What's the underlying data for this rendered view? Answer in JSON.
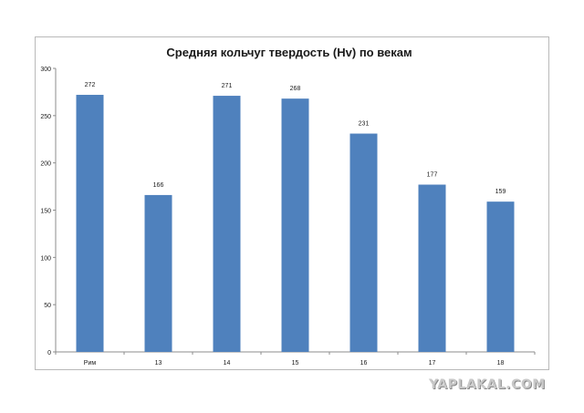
{
  "chart_data": {
    "type": "bar",
    "title": "Средняя кольчуг твердость  (Hv) по векам",
    "categories": [
      "Рим",
      "13",
      "14",
      "15",
      "16",
      "17",
      "18"
    ],
    "values": [
      272,
      166,
      271,
      268,
      231,
      177,
      159
    ],
    "value_labels": [
      "272",
      "166",
      "271",
      "268",
      "231",
      "177",
      "159"
    ],
    "yticks": [
      "0",
      "50",
      "100",
      "150",
      "200",
      "250",
      "300"
    ],
    "ylim": [
      0,
      300
    ],
    "grid": false,
    "legend": "none",
    "colors": {
      "bar": "#4f81bd",
      "axis": "#8c8c8c",
      "text": "#1a1a1a"
    }
  },
  "watermark": "YAPLAKAL.COM"
}
